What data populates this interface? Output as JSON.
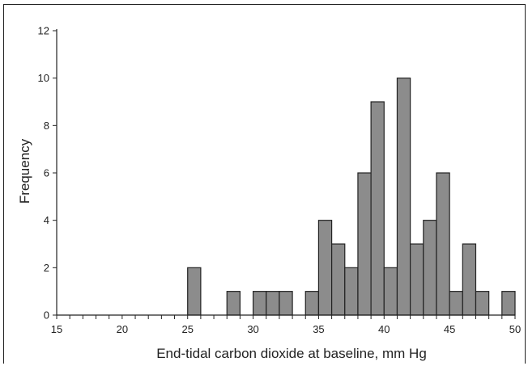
{
  "chart_data": {
    "type": "bar",
    "title": "",
    "xlabel": "End-tidal carbon dioxide at baseline, mm Hg",
    "ylabel": "Frequency",
    "xlim": [
      15,
      50
    ],
    "ylim": [
      0,
      12
    ],
    "xticks": [
      15,
      20,
      25,
      30,
      35,
      40,
      45,
      50
    ],
    "yticks": [
      0,
      2,
      4,
      6,
      8,
      10,
      12
    ],
    "bin_width": 1,
    "grid": false,
    "bar_color": "#8c8c8c",
    "bins": [
      {
        "x": 25,
        "value": 2
      },
      {
        "x": 28,
        "value": 1
      },
      {
        "x": 30,
        "value": 1
      },
      {
        "x": 31,
        "value": 1
      },
      {
        "x": 32,
        "value": 1
      },
      {
        "x": 34,
        "value": 1
      },
      {
        "x": 35,
        "value": 4
      },
      {
        "x": 36,
        "value": 3
      },
      {
        "x": 37,
        "value": 2
      },
      {
        "x": 38,
        "value": 6
      },
      {
        "x": 39,
        "value": 9
      },
      {
        "x": 40,
        "value": 2
      },
      {
        "x": 41,
        "value": 10
      },
      {
        "x": 42,
        "value": 3
      },
      {
        "x": 43,
        "value": 4
      },
      {
        "x": 44,
        "value": 6
      },
      {
        "x": 45,
        "value": 1
      },
      {
        "x": 46,
        "value": 3
      },
      {
        "x": 47,
        "value": 1
      },
      {
        "x": 49,
        "value": 1
      }
    ]
  }
}
